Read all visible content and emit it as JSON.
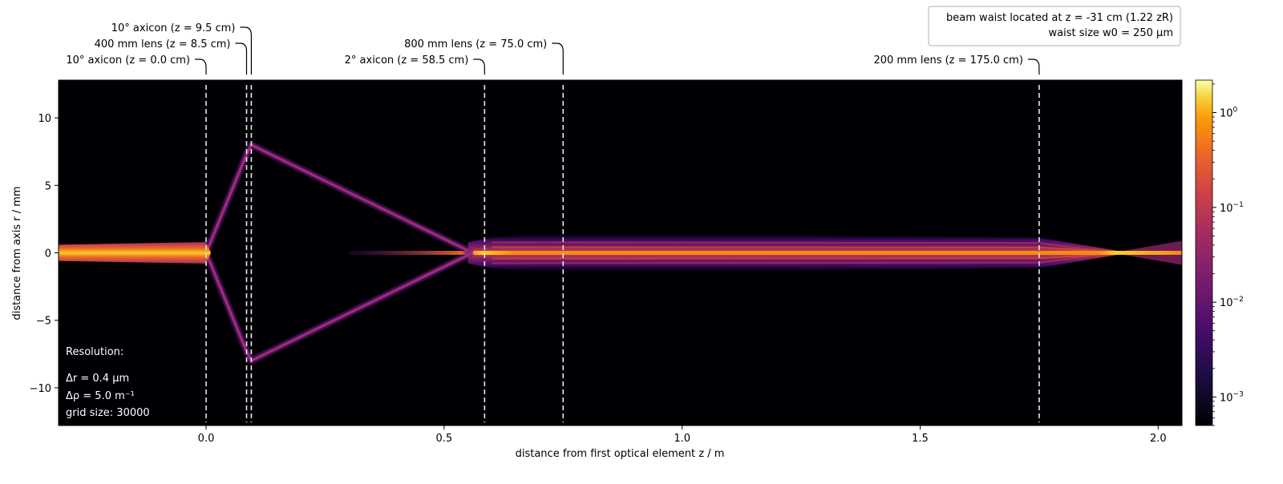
{
  "chart_data": {
    "type": "heatmap",
    "title": "",
    "xlabel": "distance from first optical element z / m",
    "ylabel": "distance from axis r / mm",
    "xlim": [
      -0.31,
      2.05
    ],
    "ylim": [
      -12.8,
      12.8
    ],
    "x_ticks": [
      0.0,
      0.5,
      1.0,
      1.5,
      2.0
    ],
    "x_tick_labels": [
      "0.0",
      "0.5",
      "1.0",
      "1.5",
      "2.0"
    ],
    "y_ticks": [
      10,
      5,
      0,
      -5,
      -10
    ],
    "y_tick_labels": [
      "10",
      "5",
      "0",
      "−5",
      "−10"
    ],
    "colorbar": {
      "scale": "log",
      "range": [
        0.0005,
        2.2
      ],
      "ticks": [
        1,
        0.1,
        0.01,
        0.001
      ],
      "tick_labels": [
        {
          "base": "10",
          "exp": "0"
        },
        {
          "base": "10",
          "exp": "−1"
        },
        {
          "base": "10",
          "exp": "−2"
        },
        {
          "base": "10",
          "exp": "−3"
        }
      ],
      "colormap": "inferno"
    },
    "optical_elements": [
      {
        "z": 0.0,
        "label": "10° axicon (z = 0.0 cm)",
        "tier": 0
      },
      {
        "z": 0.085,
        "label": "400 mm lens (z = 8.5 cm)",
        "tier": 1
      },
      {
        "z": 0.095,
        "label": "10° axicon (z = 9.5 cm)",
        "tier": 2
      },
      {
        "z": 0.585,
        "label": "2° axicon (z = 58.5 cm)",
        "tier": 0
      },
      {
        "z": 0.75,
        "label": "800 mm lens (z = 75.0 cm)",
        "tier": 1
      },
      {
        "z": 1.75,
        "label": "200 mm lens (z = 175.0 cm)",
        "tier": 0
      }
    ],
    "beam_paths": [
      {
        "name": "input beam",
        "points": [
          [
            -0.31,
            0.0
          ],
          [
            0.0,
            0.0
          ]
        ],
        "halfwidth_mm": 0.5
      },
      {
        "name": "cone upper",
        "points": [
          [
            0.0,
            0.0
          ],
          [
            0.085,
            7.3
          ],
          [
            0.095,
            8.0
          ],
          [
            0.56,
            0.0
          ]
        ]
      },
      {
        "name": "cone lower",
        "points": [
          [
            0.0,
            0.0
          ],
          [
            0.085,
            -7.3
          ],
          [
            0.095,
            -8.0
          ],
          [
            0.56,
            0.0
          ]
        ]
      },
      {
        "name": "bessel core",
        "points": [
          [
            0.3,
            0.0
          ],
          [
            2.05,
            0.0
          ]
        ]
      },
      {
        "name": "ring band",
        "x_range": [
          0.55,
          1.92
        ],
        "halfwidth_mm": 1.4
      }
    ],
    "annotations": {
      "resolution_title": "Resolution:",
      "dr": "Δr = 0.4 μm",
      "drho": "Δρ = 5.0 m⁻¹",
      "grid": "grid size: 30000"
    },
    "legend_box": {
      "line1": "beam waist located at z = -31 cm (1.22 zR)",
      "line2": "waist size w0 = 250 μm"
    }
  }
}
